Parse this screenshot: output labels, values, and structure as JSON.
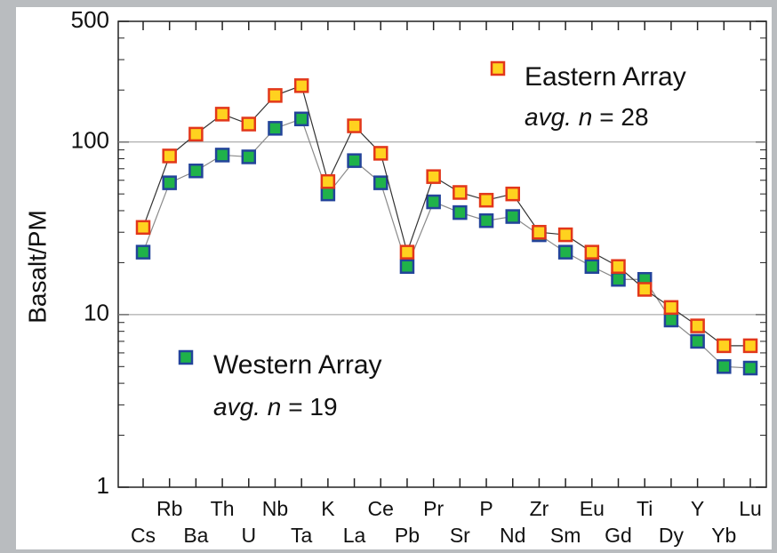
{
  "chart_data": {
    "type": "line",
    "ylabel": "Basalt/PM",
    "log_scale": true,
    "categories": [
      "Cs",
      "Rb",
      "Ba",
      "Th",
      "U",
      "Nb",
      "Ta",
      "K",
      "La",
      "Ce",
      "Pb",
      "Pr",
      "Sr",
      "P",
      "Nd",
      "Zr",
      "Sm",
      "Eu",
      "Gd",
      "Ti",
      "Dy",
      "Y",
      "Yb",
      "Lu"
    ],
    "ylim": [
      1,
      500
    ],
    "yticks": [
      1,
      10,
      100,
      500
    ],
    "minor_yticks": [
      2,
      3,
      4,
      5,
      6,
      7,
      8,
      9,
      20,
      30,
      40,
      50,
      60,
      70,
      80,
      90,
      200,
      300,
      400
    ],
    "grid": true,
    "series": [
      {
        "name": "Eastern Array",
        "note": [
          "avg. n",
          "= 28"
        ],
        "color": "#ffd21f",
        "edge": "#e2371a",
        "line": "#333333",
        "values": [
          32,
          83,
          111,
          145,
          127,
          186,
          212,
          59,
          124,
          86,
          23,
          63,
          51,
          46,
          50,
          30,
          29,
          23,
          19,
          14,
          11,
          8.6,
          6.6,
          6.6
        ]
      },
      {
        "name": "Western Array",
        "note": [
          "avg. n",
          "= 19"
        ],
        "color": "#1fb24a",
        "edge": "#23449a",
        "line": "#8a8a8a",
        "values": [
          23,
          58,
          68,
          84,
          82,
          120,
          136,
          50,
          78,
          58,
          19,
          45,
          39,
          35,
          37,
          29,
          23,
          19,
          16,
          16,
          9.3,
          7.0,
          5.0,
          4.9
        ]
      }
    ]
  }
}
